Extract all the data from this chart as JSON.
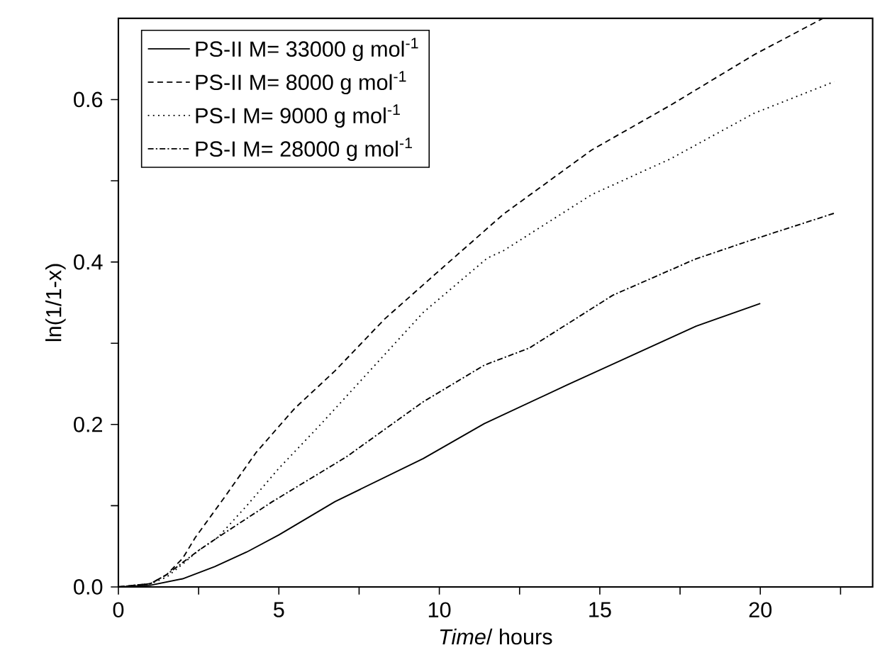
{
  "chart_data": {
    "type": "line",
    "xlabel": "*Time*/ hours",
    "ylabel": "ln(1/1-x)",
    "xlim": [
      0,
      23.5
    ],
    "ylim": [
      0,
      0.7
    ],
    "xticks": [
      0,
      {
        "value": 2.5,
        "label": null
      },
      5,
      {
        "value": 7.5,
        "label": null
      },
      10,
      {
        "value": 12.5,
        "label": null
      },
      15,
      {
        "value": 17.5,
        "label": null
      },
      20,
      {
        "value": 22.5,
        "label": null
      }
    ],
    "yticks": [
      {
        "value": 0,
        "label": "0.0"
      },
      {
        "value": 0.1,
        "label": null
      },
      0.2,
      {
        "value": 0.3,
        "label": null
      },
      0.4,
      {
        "value": 0.5,
        "label": null
      },
      0.6
    ],
    "legend": "top left",
    "grid": false,
    "marker": "none",
    "series": [
      {
        "name": "PS-II M= 33000 g mol$^{-1}$",
        "color": "#000000",
        "line_style": "solid",
        "x": [
          0,
          1,
          2,
          3,
          4,
          5,
          6.75,
          9.5,
          11.4,
          14,
          16,
          18,
          20
        ],
        "values": [
          0,
          0.002,
          0.01,
          0.025,
          0.043,
          0.064,
          0.105,
          0.158,
          0.201,
          0.249,
          0.285,
          0.321,
          0.349
        ]
      },
      {
        "name": "PS-II M= 8000 g mol$^{-1}$",
        "color": "#000000",
        "line_style": "dashed",
        "x": [
          0,
          1,
          1.5,
          2,
          2.4,
          3.3,
          4.3,
          5.5,
          6.75,
          8.3,
          9.9,
          12,
          14.75,
          17.2,
          19.8,
          21.95
        ],
        "values": [
          0,
          0.004,
          0.015,
          0.035,
          0.061,
          0.11,
          0.166,
          0.22,
          0.266,
          0.33,
          0.386,
          0.459,
          0.538,
          0.593,
          0.655,
          0.7
        ]
      },
      {
        "name": "PS-I  M= 9000 g mol$^{-1}$",
        "color": "#000000",
        "line_style": "dotted",
        "x": [
          0,
          1,
          1.5,
          2,
          2.5,
          3.1,
          4,
          5,
          6.3,
          7.6,
          9.5,
          11.5,
          12,
          14.75,
          17.2,
          19.8,
          22.3
        ],
        "values": [
          0,
          0.004,
          0.012,
          0.028,
          0.045,
          0.061,
          0.1,
          0.146,
          0.2,
          0.256,
          0.338,
          0.405,
          0.414,
          0.483,
          0.527,
          0.583,
          0.622
        ]
      },
      {
        "name": "PS-I  M= 28000 g mol$^{-1}$",
        "color": "#000000",
        "line_style": "dashdot",
        "x": [
          0,
          1,
          1.5,
          2,
          2.5,
          3.1,
          4.8,
          7.1,
          9.5,
          11.4,
          12.8,
          15.4,
          18,
          19.8,
          22.3
        ],
        "values": [
          0,
          0.004,
          0.015,
          0.03,
          0.045,
          0.061,
          0.105,
          0.16,
          0.228,
          0.273,
          0.294,
          0.359,
          0.404,
          0.428,
          0.46
        ]
      }
    ]
  }
}
